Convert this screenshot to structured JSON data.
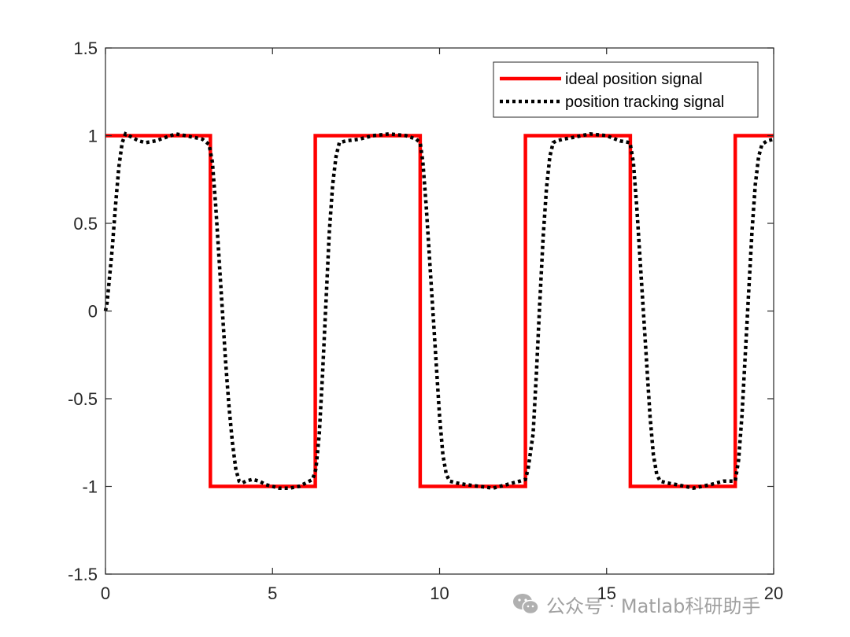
{
  "chart_data": {
    "type": "line",
    "title": "",
    "xlabel": "",
    "ylabel": "",
    "xlim": [
      0,
      20
    ],
    "ylim": [
      -1.5,
      1.5
    ],
    "xticks": [
      0,
      5,
      10,
      15,
      20
    ],
    "yticks": [
      -1.5,
      -1,
      -0.5,
      0,
      0.5,
      1,
      1.5
    ],
    "xtick_labels": [
      "0",
      "5",
      "10",
      "15",
      "20"
    ],
    "ytick_labels": [
      "-1.5",
      "-1",
      "-0.5",
      "0",
      "0.5",
      "1",
      "1.5"
    ],
    "grid": false,
    "legend_position": "top-right",
    "series": [
      {
        "name": "ideal position signal",
        "color": "#ff0000",
        "style": "solid",
        "x": [
          0,
          3.14,
          3.14,
          6.28,
          6.28,
          9.42,
          9.42,
          12.57,
          12.57,
          15.71,
          15.71,
          18.85,
          18.85,
          20
        ],
        "y": [
          1,
          1,
          -1,
          -1,
          1,
          1,
          -1,
          -1,
          1,
          1,
          -1,
          -1,
          1,
          1
        ]
      },
      {
        "name": "position tracking signal",
        "color": "#000000",
        "style": "dotted",
        "x": [
          0,
          0.05,
          0.1,
          0.2,
          0.3,
          0.4,
          0.5,
          0.6,
          0.8,
          1.0,
          1.2,
          1.5,
          1.8,
          2.1,
          2.4,
          2.65,
          2.9,
          3.1,
          3.2,
          3.3,
          3.4,
          3.5,
          3.6,
          3.7,
          3.8,
          3.9,
          4.0,
          4.1,
          4.2,
          4.4,
          4.6,
          4.8,
          5.0,
          5.2,
          5.5,
          5.8,
          6.0,
          6.2,
          6.3,
          6.4,
          6.5,
          6.6,
          6.7,
          6.8,
          6.9,
          7.0,
          7.2,
          7.6,
          8.0,
          8.5,
          9.0,
          9.3,
          9.42,
          9.5,
          9.6,
          9.7,
          9.8,
          9.9,
          10.0,
          10.1,
          10.2,
          10.3,
          10.5,
          10.8,
          11.2,
          11.6,
          12.0,
          12.4,
          12.57,
          12.65,
          12.8,
          12.9,
          13.0,
          13.1,
          13.2,
          13.3,
          13.4,
          13.5,
          13.7,
          14.0,
          14.5,
          15.0,
          15.4,
          15.7,
          15.8,
          15.9,
          16.0,
          16.1,
          16.2,
          16.3,
          16.4,
          16.5,
          16.6,
          16.8,
          17.1,
          17.6,
          18.1,
          18.5,
          18.85,
          18.95,
          19.05,
          19.15,
          19.25,
          19.35,
          19.45,
          19.55,
          19.65,
          19.8,
          20.0
        ],
        "y": [
          0,
          0.05,
          0.15,
          0.35,
          0.6,
          0.82,
          0.96,
          1.01,
          0.99,
          0.97,
          0.96,
          0.97,
          0.99,
          1.01,
          1.0,
          0.99,
          0.98,
          0.95,
          0.85,
          0.6,
          0.3,
          0.0,
          -0.3,
          -0.55,
          -0.75,
          -0.9,
          -0.97,
          -0.98,
          -0.97,
          -0.96,
          -0.97,
          -0.99,
          -1.0,
          -1.01,
          -1.01,
          -1.0,
          -0.98,
          -0.96,
          -0.9,
          -0.7,
          -0.35,
          0.05,
          0.45,
          0.72,
          0.88,
          0.96,
          0.97,
          0.98,
          1.0,
          1.01,
          1.0,
          0.98,
          0.96,
          0.85,
          0.6,
          0.3,
          0.0,
          -0.3,
          -0.6,
          -0.82,
          -0.93,
          -0.97,
          -0.98,
          -0.99,
          -1.0,
          -1.01,
          -0.99,
          -0.97,
          -0.96,
          -0.9,
          -0.7,
          -0.35,
          0.05,
          0.42,
          0.7,
          0.88,
          0.96,
          0.97,
          0.98,
          0.99,
          1.01,
          1.0,
          0.97,
          0.96,
          0.85,
          0.6,
          0.3,
          0.0,
          -0.3,
          -0.6,
          -0.82,
          -0.93,
          -0.97,
          -0.98,
          -0.99,
          -1.01,
          -0.99,
          -0.97,
          -0.97,
          -0.85,
          -0.6,
          -0.25,
          0.1,
          0.45,
          0.72,
          0.88,
          0.95,
          0.97,
          0.98
        ]
      }
    ]
  },
  "watermark": {
    "text": "公众号 · Matlab科研助手",
    "icon": "wechat-icon",
    "color": "#a0a0a0"
  }
}
